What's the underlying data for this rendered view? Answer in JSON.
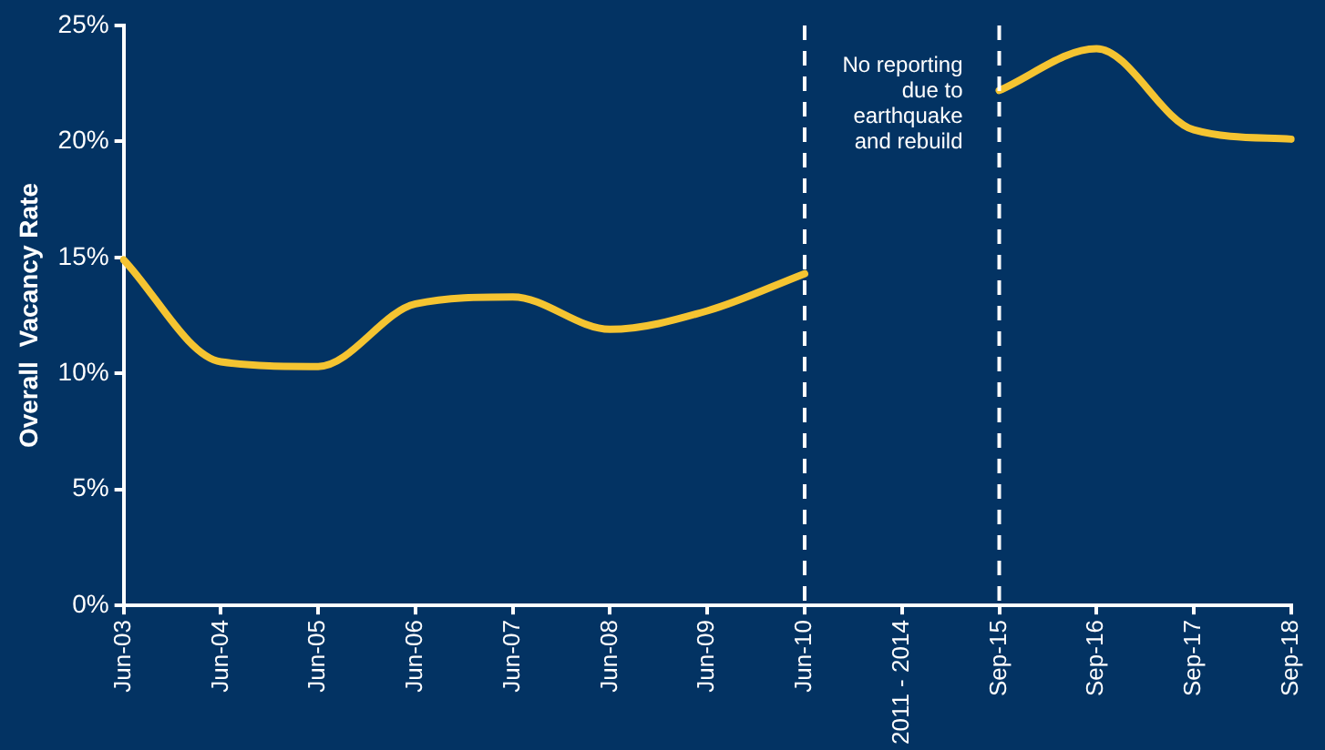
{
  "chart_data": {
    "type": "line",
    "ylabel": "Overall  Vacancy Rate",
    "categories": [
      "Jun-03",
      "Jun-04",
      "Jun-05",
      "Jun-06",
      "Jun-07",
      "Jun-08",
      "Jun-09",
      "Jun-10",
      "2011 - 2014",
      "Sep-15",
      "Sep-16",
      "Sep-17",
      "Sep-18"
    ],
    "series": [
      {
        "color": "#f5c431",
        "values": [
          14.9,
          10.5,
          10.3,
          13.0,
          13.3,
          11.9,
          12.7,
          14.3,
          null,
          22.2,
          24.0,
          20.5,
          20.1
        ]
      }
    ],
    "ylim": [
      0,
      25
    ],
    "yticks": [
      {
        "value": 0,
        "label": "0%"
      },
      {
        "value": 5,
        "label": "5%"
      },
      {
        "value": 10,
        "label": "10%"
      },
      {
        "value": 15,
        "label": "15%"
      },
      {
        "value": 20,
        "label": "20%"
      },
      {
        "value": 25,
        "label": "25%"
      }
    ],
    "grid": false,
    "legend": false,
    "marker": "none",
    "line_style": "solid",
    "ref_lines": [
      {
        "axis": "x",
        "value": "Jun-10",
        "color": "#ffffff",
        "line_style": "dashed"
      },
      {
        "axis": "x",
        "value": "Sep-15",
        "color": "#ffffff",
        "line_style": "dashed"
      }
    ],
    "annotations": [
      "No reporting due to earthquake and rebuild"
    ]
  }
}
